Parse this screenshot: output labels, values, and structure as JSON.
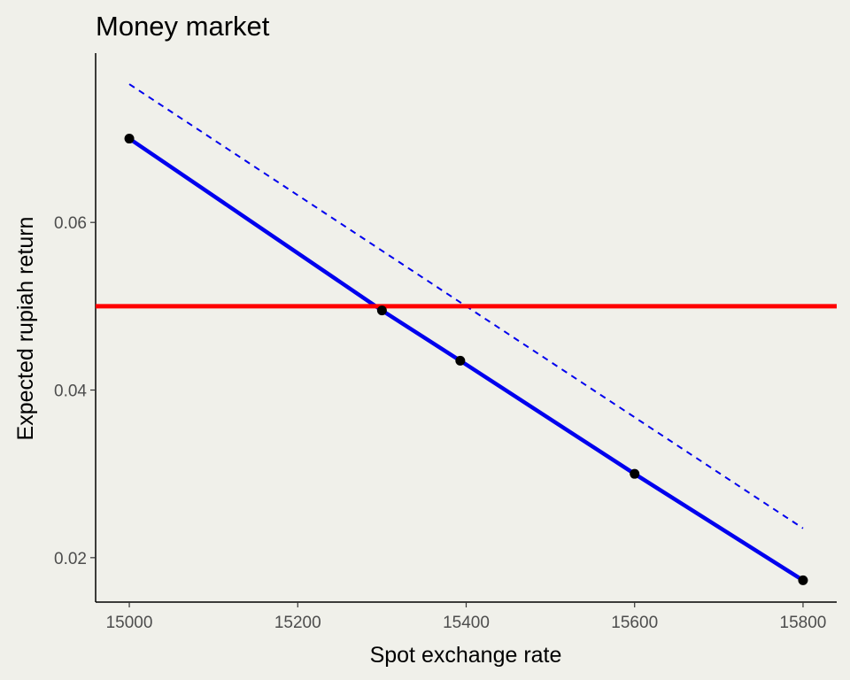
{
  "chart_data": {
    "type": "line",
    "title": "Money market",
    "xlabel": "Spot exchange rate",
    "ylabel": "Expected rupiah return",
    "xlim": [
      14960,
      15840
    ],
    "ylim": [
      0.0147,
      0.0802
    ],
    "x_ticks": [
      15000,
      15200,
      15400,
      15600,
      15800
    ],
    "x_tick_labels": [
      "15000",
      "15200",
      "15400",
      "15600",
      "15800"
    ],
    "y_ticks": [
      0.02,
      0.04,
      0.06
    ],
    "y_tick_labels": [
      "0.02",
      "0.04",
      "0.06"
    ],
    "grid": false,
    "legend": "none",
    "series": [
      {
        "style": "solid",
        "color": "#0000ee",
        "markers": true,
        "x": [
          15000,
          15300,
          15393,
          15600,
          15800
        ],
        "y": [
          0.07,
          0.0495,
          0.0435,
          0.03,
          0.0173
        ]
      },
      {
        "style": "dashed",
        "color": "#0000ee",
        "markers": false,
        "x": [
          15000,
          15800
        ],
        "y": [
          0.0765,
          0.0235
        ]
      }
    ],
    "hlines": [
      {
        "y": 0.05,
        "color": "#ff0000"
      }
    ]
  }
}
